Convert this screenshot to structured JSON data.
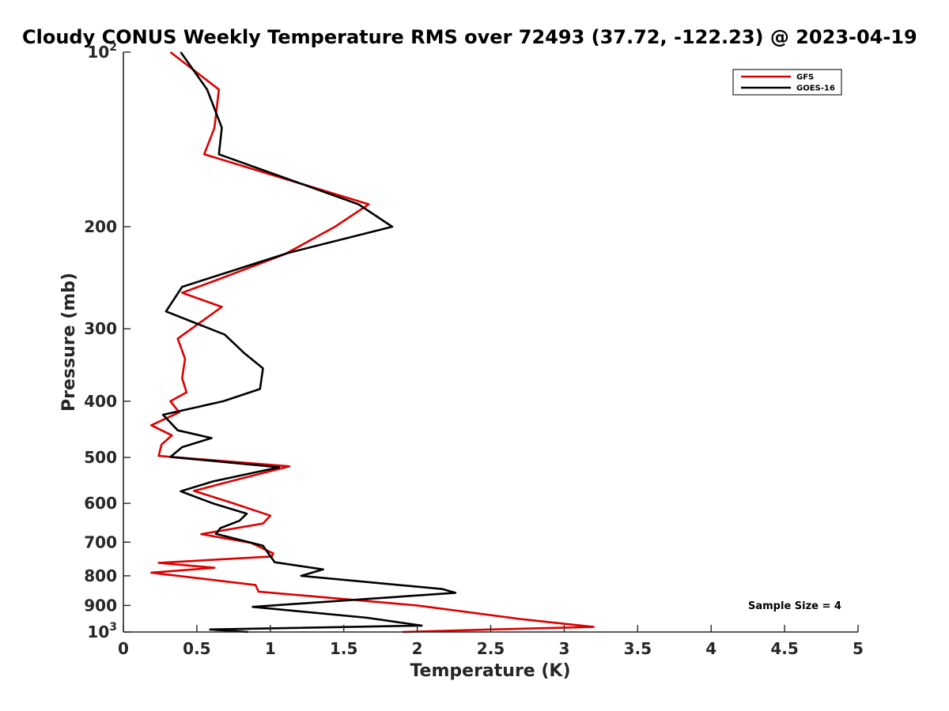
{
  "chart_data": {
    "type": "line",
    "title": "Cloudy CONUS Weekly Temperature RMS over 72493 (37.72, -122.23) @ 2023-04-19",
    "xlabel": "Temperature (K)",
    "ylabel": "Pressure (mb)",
    "xlim": [
      0,
      5
    ],
    "ylim": [
      100,
      1000
    ],
    "y_scale": "log",
    "y_reversed": true,
    "grid": false,
    "legend_position": "top-right",
    "x_ticks": [
      {
        "value": 0,
        "label": "0"
      },
      {
        "value": 0.5,
        "label": "0.5"
      },
      {
        "value": 1,
        "label": "1"
      },
      {
        "value": 1.5,
        "label": "1.5"
      },
      {
        "value": 2,
        "label": "2"
      },
      {
        "value": 2.5,
        "label": "2.5"
      },
      {
        "value": 3,
        "label": "3"
      },
      {
        "value": 3.5,
        "label": "3.5"
      },
      {
        "value": 4,
        "label": "4"
      },
      {
        "value": 4.5,
        "label": "4.5"
      },
      {
        "value": 5,
        "label": "5"
      }
    ],
    "y_ticks": [
      {
        "value": 100,
        "base": "10",
        "exp": "2"
      },
      {
        "value": 200,
        "base": "200",
        "exp": ""
      },
      {
        "value": 300,
        "base": "300",
        "exp": ""
      },
      {
        "value": 400,
        "base": "400",
        "exp": ""
      },
      {
        "value": 500,
        "base": "500",
        "exp": ""
      },
      {
        "value": 600,
        "base": "600",
        "exp": ""
      },
      {
        "value": 700,
        "base": "700",
        "exp": ""
      },
      {
        "value": 800,
        "base": "800",
        "exp": ""
      },
      {
        "value": 900,
        "base": "900",
        "exp": ""
      },
      {
        "value": 1000,
        "base": "10",
        "exp": "3"
      }
    ],
    "series": [
      {
        "name": "GFS",
        "color": "#dd0000",
        "points": [
          [
            0.32,
            100
          ],
          [
            0.65,
            116
          ],
          [
            0.62,
            135
          ],
          [
            0.55,
            150
          ],
          [
            1.67,
            183
          ],
          [
            1.44,
            200
          ],
          [
            1.1,
            223
          ],
          [
            0.62,
            248
          ],
          [
            0.4,
            260
          ],
          [
            0.67,
            275
          ],
          [
            0.37,
            312
          ],
          [
            0.42,
            338
          ],
          [
            0.4,
            365
          ],
          [
            0.43,
            386
          ],
          [
            0.32,
            400
          ],
          [
            0.38,
            418
          ],
          [
            0.19,
            440
          ],
          [
            0.33,
            458
          ],
          [
            0.26,
            475
          ],
          [
            0.24,
            497
          ],
          [
            1.13,
            518
          ],
          [
            0.74,
            549
          ],
          [
            0.48,
            571
          ],
          [
            0.75,
            600
          ],
          [
            1.0,
            630
          ],
          [
            0.95,
            650
          ],
          [
            0.53,
            678
          ],
          [
            0.87,
            702
          ],
          [
            1.02,
            732
          ],
          [
            1.01,
            741
          ],
          [
            0.24,
            760
          ],
          [
            0.62,
            775
          ],
          [
            0.19,
            790
          ],
          [
            0.9,
            830
          ],
          [
            0.92,
            852
          ],
          [
            2.0,
            900
          ],
          [
            2.7,
            950
          ],
          [
            3.2,
            980
          ],
          [
            2.5,
            990
          ],
          [
            1.9,
            1000
          ]
        ]
      },
      {
        "name": "GOES-16",
        "color": "#000000",
        "points": [
          [
            0.39,
            100
          ],
          [
            0.57,
            116
          ],
          [
            0.67,
            135
          ],
          [
            0.65,
            150
          ],
          [
            1.6,
            183
          ],
          [
            1.83,
            200
          ],
          [
            1.12,
            222
          ],
          [
            0.4,
            254
          ],
          [
            0.29,
            280
          ],
          [
            0.69,
            307
          ],
          [
            0.82,
            330
          ],
          [
            0.95,
            351
          ],
          [
            0.93,
            381
          ],
          [
            0.68,
            400
          ],
          [
            0.27,
            422
          ],
          [
            0.37,
            449
          ],
          [
            0.6,
            463
          ],
          [
            0.4,
            480
          ],
          [
            0.32,
            499
          ],
          [
            1.06,
            520
          ],
          [
            0.61,
            550
          ],
          [
            0.39,
            572
          ],
          [
            0.61,
            600
          ],
          [
            0.84,
            625
          ],
          [
            0.79,
            643
          ],
          [
            0.66,
            662
          ],
          [
            0.63,
            677
          ],
          [
            0.95,
            710
          ],
          [
            1.03,
            758
          ],
          [
            1.36,
            780
          ],
          [
            1.21,
            800
          ],
          [
            2.17,
            843
          ],
          [
            2.26,
            856
          ],
          [
            0.88,
            905
          ],
          [
            1.66,
            945
          ],
          [
            2.03,
            975
          ],
          [
            0.59,
            990
          ],
          [
            0.85,
            1000
          ]
        ]
      }
    ],
    "annotation": "Sample Size = 4"
  }
}
